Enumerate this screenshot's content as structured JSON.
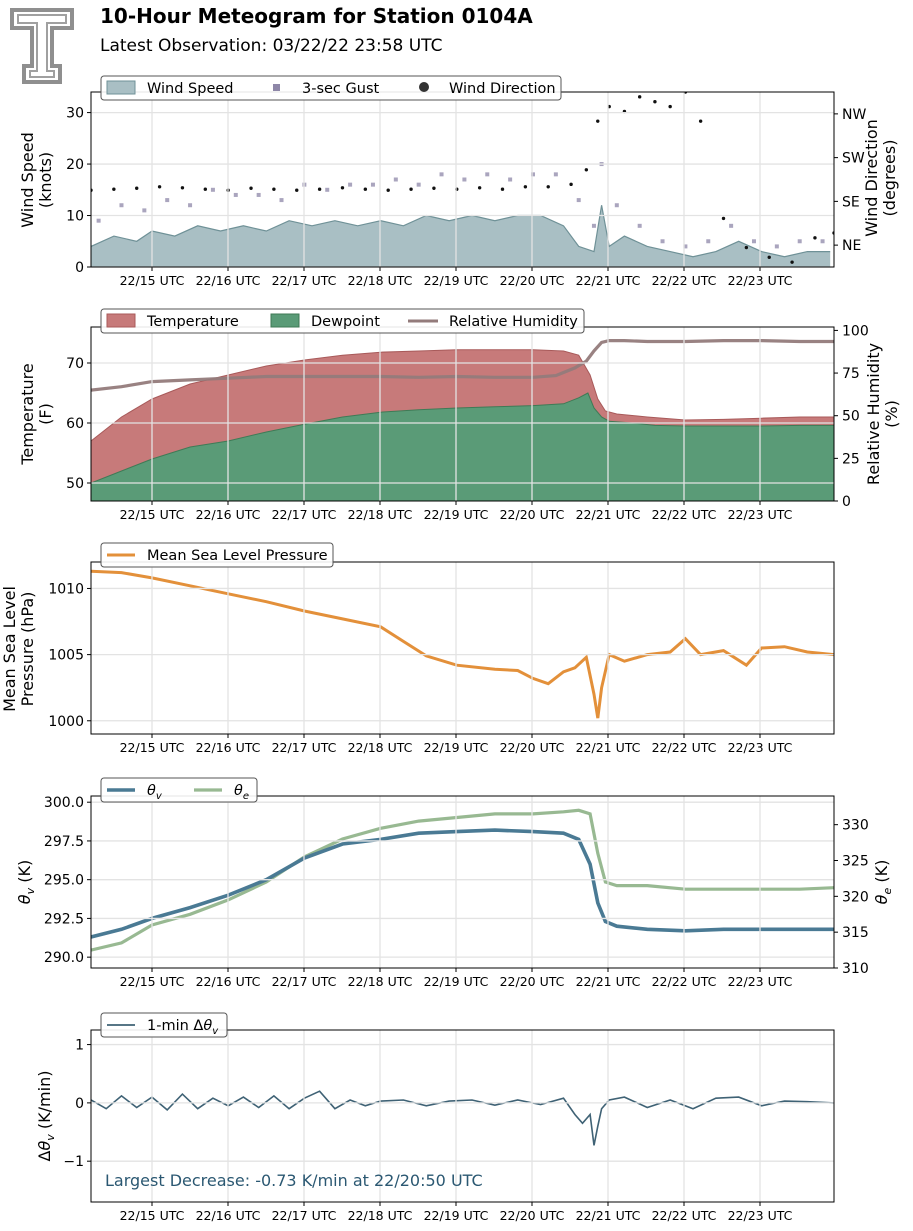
{
  "header": {
    "title": "10-Hour Meteogram for Station 0104A",
    "subtitle": "Latest Observation: 03/22/22 23:58 UTC"
  },
  "x_ticks": [
    "22/15 UTC",
    "22/16 UTC",
    "22/17 UTC",
    "22/18 UTC",
    "22/19 UTC",
    "22/20 UTC",
    "22/21 UTC",
    "22/22 UTC",
    "22/23 UTC"
  ],
  "colors": {
    "wind_speed": "#a9bfc4",
    "wind_speed_line": "#6f9197",
    "gust": "#8e87a8",
    "direction": "#111111",
    "temperature": "#c77a7a",
    "dewpoint": "#5a9b77",
    "rh": "#937b7b",
    "pressure": "#e3903a",
    "theta_v": "#4a7a94",
    "theta_e": "#98b992",
    "dtheta": "#3f6275",
    "annotation": "#2b5872"
  },
  "chart_data": [
    {
      "type": "area",
      "name": "wind",
      "ylabel": "Wind Speed (knots)",
      "ylabel_lines": [
        "Wind Speed",
        "(knots)"
      ],
      "ylabel_right": "Wind Direction (degrees)",
      "ylabel_right_lines": [
        "Wind Direction",
        "(degrees)"
      ],
      "ylim": [
        0,
        34
      ],
      "yticks": [
        0,
        10,
        20,
        30
      ],
      "yticks_right": [
        "NE",
        "SE",
        "SW",
        "NW"
      ],
      "yticks_right_values": [
        45,
        135,
        225,
        315
      ],
      "ylim_right": [
        0,
        360
      ],
      "legend": [
        "Wind Speed",
        "3-sec Gust",
        "Wind Direction"
      ],
      "grid": true,
      "series": [
        {
          "name": "Wind Speed",
          "kind": "area",
          "x": [
            14.2,
            14.5,
            14.8,
            15.0,
            15.3,
            15.6,
            15.9,
            16.2,
            16.5,
            16.8,
            17.1,
            17.4,
            17.7,
            18.0,
            18.3,
            18.6,
            18.9,
            19.2,
            19.5,
            19.8,
            20.1,
            20.4,
            20.6,
            20.8,
            20.9,
            21.0,
            21.2,
            21.5,
            21.8,
            22.1,
            22.4,
            22.7,
            23.0,
            23.3,
            23.6,
            23.9
          ],
          "y": [
            4,
            6,
            5,
            7,
            6,
            8,
            7,
            8,
            7,
            9,
            8,
            9,
            8,
            9,
            8,
            10,
            9,
            10,
            9,
            10,
            10,
            8,
            4,
            3,
            12,
            4,
            6,
            4,
            3,
            2,
            3,
            5,
            3,
            2,
            3,
            3
          ]
        },
        {
          "name": "3-sec Gust",
          "kind": "scatter",
          "x": [
            14.3,
            14.6,
            14.9,
            15.2,
            15.5,
            15.8,
            16.1,
            16.4,
            16.7,
            17.0,
            17.3,
            17.6,
            17.9,
            18.2,
            18.5,
            18.8,
            19.1,
            19.4,
            19.7,
            20.0,
            20.3,
            20.6,
            20.8,
            20.9,
            21.1,
            21.4,
            21.7,
            22.0,
            22.3,
            22.6,
            22.9,
            23.2,
            23.5,
            23.8
          ],
          "y": [
            9,
            12,
            11,
            13,
            12,
            15,
            14,
            14,
            13,
            16,
            15,
            16,
            16,
            17,
            16,
            18,
            17,
            18,
            17,
            18,
            18,
            13,
            8,
            20,
            12,
            8,
            5,
            4,
            5,
            8,
            5,
            4,
            5,
            5
          ]
        },
        {
          "name": "Wind Direction",
          "kind": "scatter",
          "x": [
            14.2,
            14.5,
            14.8,
            15.1,
            15.4,
            15.7,
            16.0,
            16.3,
            16.6,
            16.9,
            17.2,
            17.5,
            17.8,
            18.1,
            18.4,
            18.7,
            19.0,
            19.3,
            19.6,
            19.9,
            20.2,
            20.5,
            20.7,
            20.85,
            21.0,
            21.2,
            21.4,
            21.6,
            21.8,
            22.0,
            22.2,
            22.5,
            22.8,
            23.1,
            23.4,
            23.7,
            23.95
          ],
          "y": [
            158,
            160,
            162,
            165,
            163,
            160,
            158,
            162,
            160,
            158,
            160,
            163,
            160,
            158,
            160,
            162,
            160,
            163,
            160,
            165,
            165,
            170,
            200,
            300,
            330,
            320,
            350,
            340,
            330,
            360,
            300,
            100,
            40,
            20,
            10,
            60,
            70
          ]
        }
      ]
    },
    {
      "type": "area",
      "name": "temperature",
      "ylabel": "Temperature (F)",
      "ylabel_lines": [
        "Temperature",
        "(F)"
      ],
      "ylabel_right": "Relative Humidity (%)",
      "ylabel_right_lines": [
        "Relative Humidity",
        "(%)"
      ],
      "ylim": [
        47,
        76
      ],
      "yticks": [
        50,
        60,
        70
      ],
      "ylim_right": [
        0,
        102
      ],
      "yticks_right": [
        0,
        25,
        50,
        75,
        100
      ],
      "legend": [
        "Temperature",
        "Dewpoint",
        "Relative Humidity"
      ],
      "grid": true,
      "series": [
        {
          "name": "Temperature",
          "kind": "area",
          "x": [
            14.2,
            14.6,
            15.0,
            15.5,
            16.0,
            16.5,
            17.0,
            17.5,
            18.0,
            18.5,
            19.0,
            19.5,
            20.0,
            20.4,
            20.6,
            20.75,
            20.85,
            20.95,
            21.1,
            21.5,
            22.0,
            22.5,
            23.0,
            23.5,
            23.95
          ],
          "y": [
            57,
            61,
            64,
            66.5,
            68,
            69.5,
            70.5,
            71.3,
            71.8,
            72,
            72.2,
            72.2,
            72.2,
            72,
            71.3,
            68,
            64,
            62,
            61.5,
            61,
            60.5,
            60.6,
            60.8,
            61,
            61
          ]
        },
        {
          "name": "Dewpoint",
          "kind": "area",
          "x": [
            14.2,
            14.6,
            15.0,
            15.5,
            16.0,
            16.5,
            17.0,
            17.5,
            18.0,
            18.5,
            19.0,
            19.5,
            20.0,
            20.4,
            20.6,
            20.72,
            20.8,
            20.9,
            21.0,
            21.3,
            21.6,
            22.0,
            22.5,
            23.0,
            23.5,
            23.95
          ],
          "y": [
            50,
            52,
            54,
            56,
            57,
            58.5,
            59.8,
            61,
            61.8,
            62.2,
            62.5,
            62.7,
            62.9,
            63.2,
            64.2,
            65,
            62.5,
            61,
            60.3,
            60,
            59.6,
            59.5,
            59.5,
            59.5,
            59.6,
            59.6
          ]
        },
        {
          "name": "Relative Humidity",
          "kind": "line",
          "x": [
            14.2,
            14.6,
            15.0,
            15.5,
            16.0,
            16.5,
            17.0,
            17.5,
            18.0,
            18.5,
            19.0,
            19.5,
            20.0,
            20.3,
            20.55,
            20.7,
            20.8,
            20.9,
            21.0,
            21.2,
            21.5,
            22.0,
            22.5,
            23.0,
            23.5,
            23.95
          ],
          "y": [
            65,
            67,
            70,
            71,
            72,
            73,
            73,
            73,
            73,
            72.5,
            73,
            72.5,
            72.5,
            73.5,
            78,
            82,
            88,
            93,
            94,
            94,
            93.5,
            93.5,
            94,
            94,
            93.5,
            93.5
          ]
        }
      ]
    },
    {
      "type": "line",
      "name": "pressure",
      "ylabel": "Mean Sea Level Pressure (hPa)",
      "ylabel_lines": [
        "Mean Sea Level",
        "Pressure (hPa)"
      ],
      "ylim": [
        999,
        1012
      ],
      "yticks": [
        1000,
        1005,
        1010
      ],
      "legend": [
        "Mean Sea Level Pressure"
      ],
      "grid": true,
      "series": [
        {
          "name": "Mean Sea Level Pressure",
          "x": [
            14.2,
            14.6,
            15.0,
            15.5,
            16.0,
            16.5,
            17.0,
            17.5,
            18.0,
            18.3,
            18.6,
            19.0,
            19.5,
            19.8,
            20.0,
            20.2,
            20.4,
            20.55,
            20.7,
            20.8,
            20.85,
            20.9,
            21.0,
            21.2,
            21.5,
            21.8,
            22.0,
            22.2,
            22.5,
            22.8,
            23.0,
            23.3,
            23.6,
            23.95
          ],
          "y": [
            1011.3,
            1011.2,
            1010.8,
            1010.2,
            1009.6,
            1009.0,
            1008.3,
            1007.7,
            1007.1,
            1006.0,
            1004.9,
            1004.2,
            1003.9,
            1003.8,
            1003.2,
            1002.8,
            1003.7,
            1004.0,
            1004.8,
            1002.0,
            1000.2,
            1002.5,
            1005.0,
            1004.5,
            1005.0,
            1005.2,
            1006.2,
            1005.0,
            1005.3,
            1004.2,
            1005.5,
            1005.6,
            1005.2,
            1005.0
          ]
        }
      ]
    },
    {
      "type": "line",
      "name": "theta",
      "ylabel": "θv (K)",
      "ylabel_right": "θe (K)",
      "ylim": [
        289.3,
        300.4
      ],
      "yticks": [
        290.0,
        292.5,
        295.0,
        297.5,
        300.0
      ],
      "ylim_right": [
        310,
        334
      ],
      "yticks_right": [
        310,
        315,
        320,
        325,
        330
      ],
      "legend": [
        "θv",
        "θe"
      ],
      "grid": true,
      "series": [
        {
          "name": "θv",
          "axis": "left",
          "x": [
            14.2,
            14.6,
            15.0,
            15.5,
            16.0,
            16.5,
            17.0,
            17.5,
            18.0,
            18.5,
            19.0,
            19.5,
            20.0,
            20.4,
            20.6,
            20.75,
            20.85,
            20.95,
            21.1,
            21.5,
            22.0,
            22.5,
            23.0,
            23.5,
            23.95
          ],
          "y": [
            291.3,
            291.8,
            292.5,
            293.2,
            294.0,
            295.0,
            296.4,
            297.3,
            297.6,
            298.0,
            298.1,
            298.2,
            298.1,
            298.0,
            297.6,
            296.0,
            293.5,
            292.3,
            292.0,
            291.8,
            291.7,
            291.8,
            291.8,
            291.8,
            291.8
          ]
        },
        {
          "name": "θe",
          "axis": "right",
          "x": [
            14.2,
            14.6,
            15.0,
            15.5,
            16.0,
            16.5,
            17.0,
            17.5,
            18.0,
            18.5,
            19.0,
            19.5,
            20.0,
            20.4,
            20.6,
            20.75,
            20.85,
            20.95,
            21.1,
            21.5,
            22.0,
            22.5,
            23.0,
            23.5,
            23.95
          ],
          "y": [
            312.5,
            313.5,
            316.0,
            317.5,
            319.5,
            322.0,
            325.5,
            328.0,
            329.5,
            330.5,
            331.0,
            331.5,
            331.5,
            331.8,
            332.0,
            331.5,
            326.0,
            322.0,
            321.5,
            321.5,
            321.0,
            321.0,
            321.0,
            321.0,
            321.2
          ]
        }
      ]
    },
    {
      "type": "line",
      "name": "dtheta",
      "ylabel": "Δθv (K/min)",
      "ylim": [
        -1.7,
        1.25
      ],
      "yticks": [
        -1,
        0,
        1
      ],
      "legend": [
        "1-min Δθv"
      ],
      "annotation": "Largest Decrease: -0.73 K/min at 22/20:50 UTC",
      "grid": true,
      "series": [
        {
          "name": "1-min Δθv",
          "x": [
            14.2,
            14.4,
            14.6,
            14.8,
            15.0,
            15.2,
            15.4,
            15.6,
            15.8,
            16.0,
            16.2,
            16.4,
            16.6,
            16.8,
            17.0,
            17.2,
            17.4,
            17.6,
            17.8,
            18.0,
            18.3,
            18.6,
            18.9,
            19.2,
            19.5,
            19.8,
            20.1,
            20.4,
            20.55,
            20.65,
            20.75,
            20.8,
            20.85,
            20.9,
            21.0,
            21.2,
            21.5,
            21.8,
            22.1,
            22.4,
            22.7,
            23.0,
            23.3,
            23.6,
            23.95
          ],
          "y": [
            0.05,
            -0.1,
            0.12,
            -0.08,
            0.1,
            -0.12,
            0.15,
            -0.1,
            0.08,
            -0.05,
            0.1,
            -0.08,
            0.12,
            -0.1,
            0.08,
            0.2,
            -0.1,
            0.05,
            -0.05,
            0.03,
            0.05,
            -0.05,
            0.03,
            0.05,
            -0.04,
            0.05,
            -0.03,
            0.08,
            -0.2,
            -0.35,
            -0.2,
            -0.73,
            -0.4,
            -0.1,
            0.05,
            0.1,
            -0.08,
            0.05,
            -0.1,
            0.08,
            0.1,
            -0.05,
            0.03,
            0.02,
            0.0
          ]
        }
      ]
    }
  ]
}
